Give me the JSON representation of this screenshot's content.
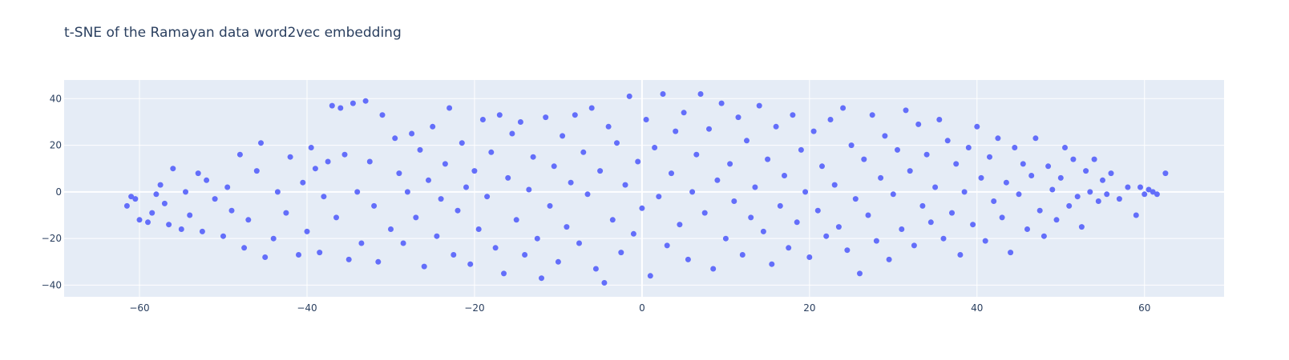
{
  "chart_data": {
    "type": "scatter",
    "title": "t-SNE of the Ramayan data word2vec embedding",
    "xlabel": "",
    "ylabel": "",
    "xlim": [
      -69,
      69.5
    ],
    "ylim": [
      -45,
      48
    ],
    "xticks": [
      -60,
      -40,
      -20,
      0,
      20,
      40,
      60
    ],
    "yticks": [
      -40,
      -20,
      0,
      20,
      40
    ],
    "xtick_labels": [
      "−60",
      "−40",
      "−20",
      "0",
      "20",
      "40",
      "60"
    ],
    "ytick_labels": [
      "−40",
      "−20",
      "0",
      "20",
      "40"
    ],
    "grid": true,
    "legend": "none",
    "colors": {
      "background": "#ffffff",
      "plot_bg": "#e5ecf6",
      "grid": "#ffffff",
      "marker": "#636efa"
    },
    "series": [
      {
        "values": [
          [
            -61,
            -2
          ],
          [
            -60.5,
            -3
          ],
          [
            -61.5,
            -6
          ],
          [
            -60,
            -12
          ],
          [
            -59,
            -13
          ],
          [
            -58.5,
            -9
          ],
          [
            -58,
            -1
          ],
          [
            -57.5,
            3
          ],
          [
            -57,
            -5
          ],
          [
            -56.5,
            -14
          ],
          [
            -56,
            10
          ],
          [
            -55,
            -16
          ],
          [
            -54.5,
            0
          ],
          [
            -54,
            -10
          ],
          [
            -53,
            8
          ],
          [
            -52.5,
            -17
          ],
          [
            -52,
            5
          ],
          [
            -51,
            -3
          ],
          [
            -50,
            -19
          ],
          [
            -49.5,
            2
          ],
          [
            -49,
            -8
          ],
          [
            -48,
            16
          ],
          [
            -47.5,
            -24
          ],
          [
            -47,
            -12
          ],
          [
            -46,
            9
          ],
          [
            -45.5,
            21
          ],
          [
            -45,
            -28
          ],
          [
            -44,
            -20
          ],
          [
            -43.5,
            0
          ],
          [
            -42.5,
            -9
          ],
          [
            -42,
            15
          ],
          [
            -41,
            -27
          ],
          [
            -40.5,
            4
          ],
          [
            -40,
            -17
          ],
          [
            -39.5,
            19
          ],
          [
            -39,
            10
          ],
          [
            -38.5,
            -26
          ],
          [
            -38,
            -2
          ],
          [
            -37.5,
            13
          ],
          [
            -37,
            37
          ],
          [
            -36.5,
            -11
          ],
          [
            -36,
            36
          ],
          [
            -35.5,
            16
          ],
          [
            -35,
            -29
          ],
          [
            -34.5,
            38
          ],
          [
            -34,
            0
          ],
          [
            -33.5,
            -22
          ],
          [
            -33,
            39
          ],
          [
            -32.5,
            13
          ],
          [
            -32,
            -6
          ],
          [
            -31.5,
            -30
          ],
          [
            -31,
            33
          ],
          [
            -30,
            -16
          ],
          [
            -29.5,
            23
          ],
          [
            -29,
            8
          ],
          [
            -28.5,
            -22
          ],
          [
            -28,
            0
          ],
          [
            -27.5,
            25
          ],
          [
            -27,
            -11
          ],
          [
            -26.5,
            18
          ],
          [
            -26,
            -32
          ],
          [
            -25.5,
            5
          ],
          [
            -25,
            28
          ],
          [
            -24.5,
            -19
          ],
          [
            -24,
            -3
          ],
          [
            -23.5,
            12
          ],
          [
            -23,
            36
          ],
          [
            -22.5,
            -27
          ],
          [
            -22,
            -8
          ],
          [
            -21.5,
            21
          ],
          [
            -21,
            2
          ],
          [
            -20.5,
            -31
          ],
          [
            -20,
            9
          ],
          [
            -19.5,
            -16
          ],
          [
            -19,
            31
          ],
          [
            -18.5,
            -2
          ],
          [
            -18,
            17
          ],
          [
            -17.5,
            -24
          ],
          [
            -17,
            33
          ],
          [
            -16.5,
            -35
          ],
          [
            -16,
            6
          ],
          [
            -15.5,
            25
          ],
          [
            -15,
            -12
          ],
          [
            -14.5,
            30
          ],
          [
            -14,
            -27
          ],
          [
            -13.5,
            1
          ],
          [
            -13,
            15
          ],
          [
            -12.5,
            -20
          ],
          [
            -12,
            -37
          ],
          [
            -11.5,
            32
          ],
          [
            -11,
            -6
          ],
          [
            -10.5,
            11
          ],
          [
            -10,
            -30
          ],
          [
            -9.5,
            24
          ],
          [
            -9,
            -15
          ],
          [
            -8.5,
            4
          ],
          [
            -8,
            33
          ],
          [
            -7.5,
            -22
          ],
          [
            -7,
            17
          ],
          [
            -6.5,
            -1
          ],
          [
            -6,
            36
          ],
          [
            -5.5,
            -33
          ],
          [
            -5,
            9
          ],
          [
            -4.5,
            -39
          ],
          [
            -4,
            28
          ],
          [
            -3.5,
            -12
          ],
          [
            -3,
            21
          ],
          [
            -2.5,
            -26
          ],
          [
            -2,
            3
          ],
          [
            -1.5,
            41
          ],
          [
            -1,
            -18
          ],
          [
            -0.5,
            13
          ],
          [
            0,
            -7
          ],
          [
            0.5,
            31
          ],
          [
            1,
            -36
          ],
          [
            1.5,
            19
          ],
          [
            2,
            -2
          ],
          [
            2.5,
            42
          ],
          [
            3,
            -23
          ],
          [
            3.5,
            8
          ],
          [
            4,
            26
          ],
          [
            4.5,
            -14
          ],
          [
            5,
            34
          ],
          [
            5.5,
            -29
          ],
          [
            6,
            0
          ],
          [
            6.5,
            16
          ],
          [
            7,
            42
          ],
          [
            7.5,
            -9
          ],
          [
            8,
            27
          ],
          [
            8.5,
            -33
          ],
          [
            9,
            5
          ],
          [
            9.5,
            38
          ],
          [
            10,
            -20
          ],
          [
            10.5,
            12
          ],
          [
            11,
            -4
          ],
          [
            11.5,
            32
          ],
          [
            12,
            -27
          ],
          [
            12.5,
            22
          ],
          [
            13,
            -11
          ],
          [
            13.5,
            2
          ],
          [
            14,
            37
          ],
          [
            14.5,
            -17
          ],
          [
            15,
            14
          ],
          [
            15.5,
            -31
          ],
          [
            16,
            28
          ],
          [
            16.5,
            -6
          ],
          [
            17,
            7
          ],
          [
            17.5,
            -24
          ],
          [
            18,
            33
          ],
          [
            18.5,
            -13
          ],
          [
            19,
            18
          ],
          [
            19.5,
            0
          ],
          [
            20,
            -28
          ],
          [
            20.5,
            26
          ],
          [
            21,
            -8
          ],
          [
            21.5,
            11
          ],
          [
            22,
            -19
          ],
          [
            22.5,
            31
          ],
          [
            23,
            3
          ],
          [
            23.5,
            -15
          ],
          [
            24,
            36
          ],
          [
            24.5,
            -25
          ],
          [
            25,
            20
          ],
          [
            25.5,
            -3
          ],
          [
            26,
            -35
          ],
          [
            26.5,
            14
          ],
          [
            27,
            -10
          ],
          [
            27.5,
            33
          ],
          [
            28,
            -21
          ],
          [
            28.5,
            6
          ],
          [
            29,
            24
          ],
          [
            29.5,
            -29
          ],
          [
            30,
            -1
          ],
          [
            30.5,
            18
          ],
          [
            31,
            -16
          ],
          [
            31.5,
            35
          ],
          [
            32,
            9
          ],
          [
            32.5,
            -23
          ],
          [
            33,
            29
          ],
          [
            33.5,
            -6
          ],
          [
            34,
            16
          ],
          [
            34.5,
            -13
          ],
          [
            35,
            2
          ],
          [
            35.5,
            31
          ],
          [
            36,
            -20
          ],
          [
            36.5,
            22
          ],
          [
            37,
            -9
          ],
          [
            37.5,
            12
          ],
          [
            38,
            -27
          ],
          [
            38.5,
            0
          ],
          [
            39,
            19
          ],
          [
            39.5,
            -14
          ],
          [
            40,
            28
          ],
          [
            40.5,
            6
          ],
          [
            41,
            -21
          ],
          [
            41.5,
            15
          ],
          [
            42,
            -4
          ],
          [
            42.5,
            23
          ],
          [
            43,
            -11
          ],
          [
            43.5,
            4
          ],
          [
            44,
            -26
          ],
          [
            44.5,
            19
          ],
          [
            45,
            -1
          ],
          [
            45.5,
            12
          ],
          [
            46,
            -16
          ],
          [
            46.5,
            7
          ],
          [
            47,
            23
          ],
          [
            47.5,
            -8
          ],
          [
            48,
            -19
          ],
          [
            48.5,
            11
          ],
          [
            49,
            1
          ],
          [
            49.5,
            -12
          ],
          [
            50,
            6
          ],
          [
            50.5,
            19
          ],
          [
            51,
            -6
          ],
          [
            51.5,
            14
          ],
          [
            52,
            -2
          ],
          [
            52.5,
            -15
          ],
          [
            53,
            9
          ],
          [
            53.5,
            0
          ],
          [
            54,
            14
          ],
          [
            54.5,
            -4
          ],
          [
            55,
            5
          ],
          [
            55.5,
            -1
          ],
          [
            56,
            8
          ],
          [
            57,
            -3
          ],
          [
            58,
            2
          ],
          [
            59,
            -10
          ],
          [
            59.5,
            2
          ],
          [
            60,
            -1
          ],
          [
            60.5,
            1
          ],
          [
            61,
            0
          ],
          [
            61.5,
            -1
          ],
          [
            62.5,
            8
          ]
        ]
      }
    ]
  }
}
